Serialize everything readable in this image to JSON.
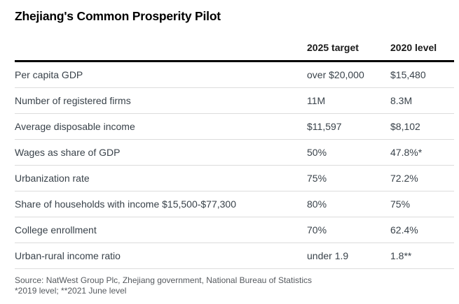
{
  "title": "Zhejiang's Common Prosperity Pilot",
  "footer": {
    "source": "Source: NatWest Group Plc, Zhejiang government, National Bureau of Statistics",
    "notes": "*2019 level; **2021 June level"
  },
  "colors": {
    "title_text": "#000000",
    "header_text": "#1a1a1a",
    "body_text": "#39424a",
    "footer_text": "#55595e",
    "header_rule": "#000000",
    "row_separator": "#dcdcdc",
    "background": "#ffffff"
  },
  "chart_data": {
    "type": "table",
    "title": "Zhejiang's Common Prosperity Pilot",
    "columns": [
      "",
      "2025 target",
      "2020 level"
    ],
    "rows": [
      {
        "label": "Per capita GDP",
        "target": "over $20,000",
        "level": "$15,480"
      },
      {
        "label": "Number of registered firms",
        "target": "11M",
        "level": "8.3M"
      },
      {
        "label": "Average disposable income",
        "target": "$11,597",
        "level": "$8,102"
      },
      {
        "label": "Wages as share of GDP",
        "target": "50%",
        "level": "47.8%*"
      },
      {
        "label": "Urbanization rate",
        "target": "75%",
        "level": "72.2%"
      },
      {
        "label": "Share of households with income $15,500-$77,300",
        "target": "80%",
        "level": "75%"
      },
      {
        "label": "College enrollment",
        "target": "70%",
        "level": "62.4%"
      },
      {
        "label": "Urban-rural income ratio",
        "target": "under 1.9",
        "level": "1.8**"
      }
    ],
    "layout": {
      "legend": "none",
      "grid": "horizontal row separators",
      "column_alignment": "left"
    }
  }
}
